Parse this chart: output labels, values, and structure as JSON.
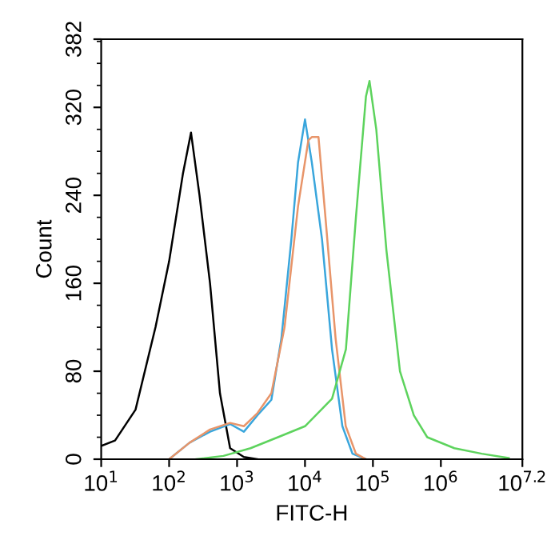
{
  "chart_data": {
    "type": "line",
    "xlabel": "FITC-H",
    "ylabel": "Count",
    "log": "x",
    "grid": false,
    "marker": "none",
    "line_style": "solid",
    "xlim": [
      10,
      15850000
    ],
    "xticks": [
      {
        "value": 10,
        "label": "10$^{1}$"
      },
      {
        "value": 100,
        "label": "10$^{2}$"
      },
      {
        "value": 1000,
        "label": "10$^{3}$"
      },
      {
        "value": 10000,
        "label": "10$^{4}$"
      },
      {
        "value": 100000,
        "label": "10$^{5}$"
      },
      {
        "value": 1000000,
        "label": "10$^{6}$"
      },
      {
        "value": 15850000,
        "label": "10$^{7.2}$"
      }
    ],
    "ylim": [
      0,
      382
    ],
    "yticks": [
      0,
      80,
      160,
      240,
      320,
      382
    ],
    "series": [
      {
        "color": "#000000",
        "x": [
          10,
          16,
          32,
          63,
          100,
          160,
          210,
          280,
          400,
          560,
          790,
          1260,
          2000
        ],
        "values": [
          12,
          17,
          45,
          120,
          180,
          260,
          297,
          240,
          160,
          60,
          10,
          2,
          0
        ]
      },
      {
        "color": "#3aa6dc",
        "x": [
          100,
          200,
          400,
          790,
          1260,
          2000,
          3200,
          4500,
          6300,
          7900,
          10000,
          12600,
          17800,
          25000,
          35500,
          50000,
          79000
        ],
        "values": [
          0,
          15,
          25,
          32,
          25,
          40,
          54,
          110,
          200,
          270,
          309,
          270,
          200,
          100,
          30,
          5,
          0
        ]
      },
      {
        "color": "#e8956a",
        "x": [
          100,
          200,
          400,
          790,
          1260,
          2000,
          3200,
          5000,
          7900,
          11200,
          12600,
          15800,
          20000,
          28200,
          39800,
          56200,
          79000
        ],
        "values": [
          0,
          15,
          27,
          33,
          30,
          42,
          60,
          120,
          230,
          290,
          293,
          293,
          220,
          110,
          30,
          5,
          0
        ]
      },
      {
        "color": "#5dd35d",
        "x": [
          250,
          630,
          1580,
          4000,
          10000,
          25000,
          40000,
          56200,
          79000,
          89000,
          112000,
          158000,
          250000,
          400000,
          630000,
          1580000,
          4000000,
          10000000
        ],
        "values": [
          0,
          3,
          10,
          20,
          30,
          55,
          100,
          220,
          330,
          344,
          300,
          190,
          80,
          40,
          20,
          10,
          5,
          1
        ]
      }
    ]
  }
}
